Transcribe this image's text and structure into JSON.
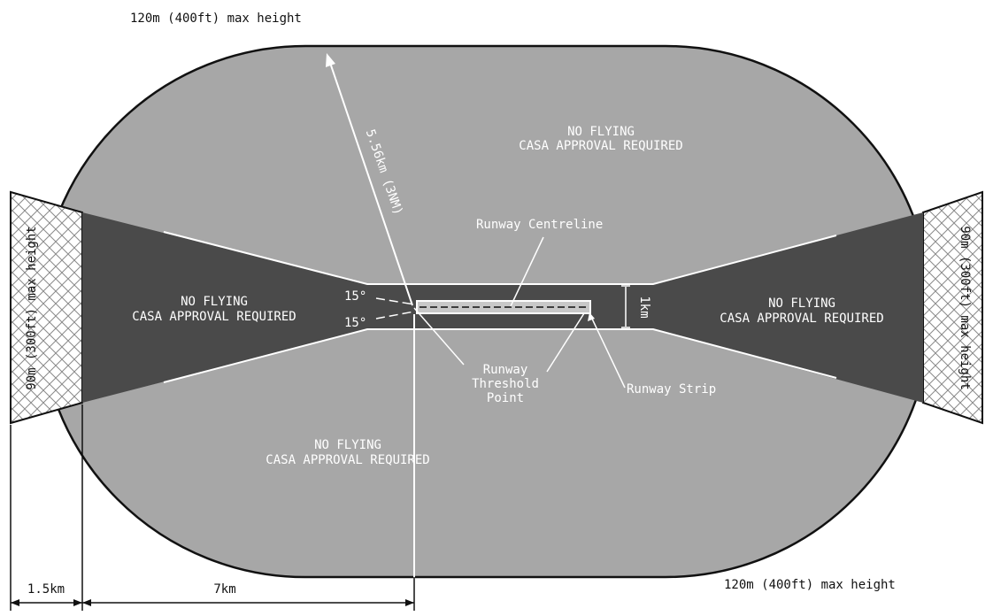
{
  "colors": {
    "zone_light": "#a7a7a7",
    "zone_dark": "#4a4a4a",
    "outline": "#111111",
    "hatch_bg": "#ffffff",
    "hatch_line": "#8a8a8a"
  },
  "labels": {
    "top_max_height": "120m (400ft) max height",
    "bottom_max_height": "120m (400ft) max height",
    "left_side_height": "90m (300ft) max height",
    "right_side_height": "90m (300ft) max height",
    "upper_zone_line1": "NO FLYING",
    "upper_zone_line2": "CASA APPROVAL REQUIRED",
    "lower_zone_line1": "NO FLYING",
    "lower_zone_line2": "CASA APPROVAL REQUIRED",
    "left_wedge_line1": "NO FLYING",
    "left_wedge_line2": "CASA APPROVAL REQUIRED",
    "right_wedge_line1": "NO FLYING",
    "right_wedge_line2": "CASA APPROVAL REQUIRED",
    "radius": "5.56km (3NM)",
    "runway_centreline": "Runway Centreline",
    "threshold_line1": "Runway",
    "threshold_line2": "Threshold",
    "threshold_line3": "Point",
    "runway_strip": "Runway Strip",
    "angle_upper": "15°",
    "angle_lower": "15°",
    "corridor_width": "1km",
    "dim_left": "1.5km",
    "dim_7km": "7km"
  }
}
